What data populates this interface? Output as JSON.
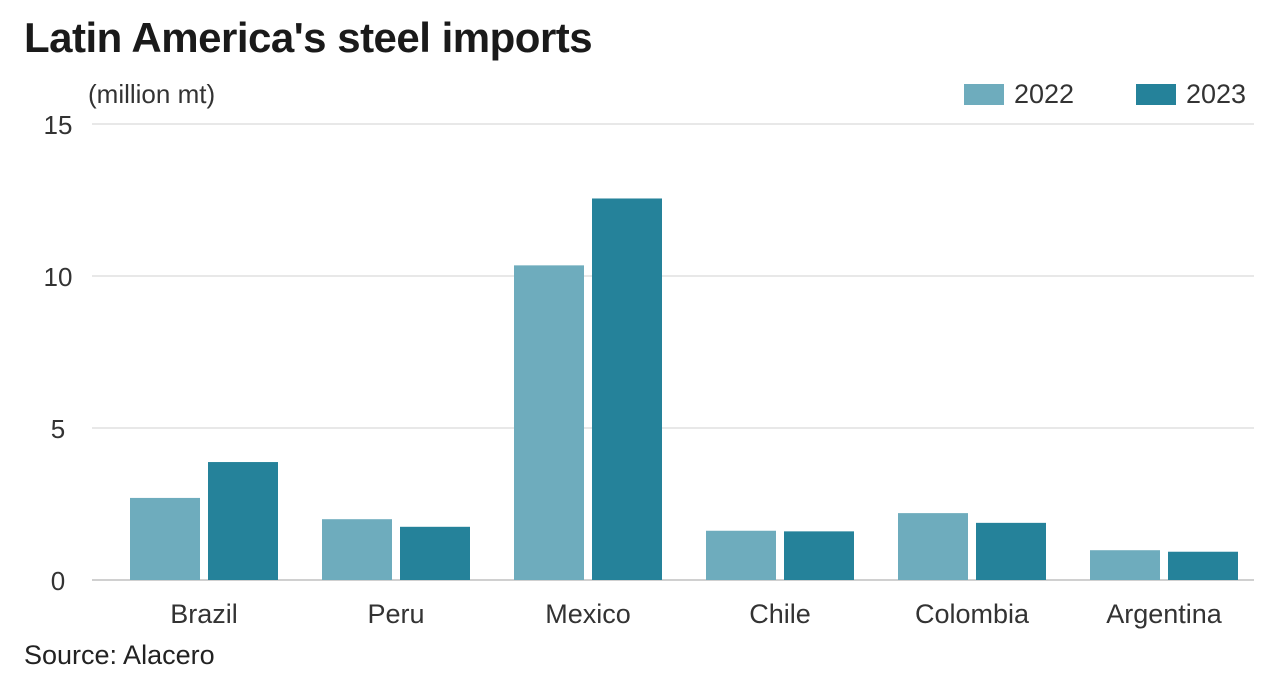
{
  "title": "Latin America's steel imports",
  "source": "Source: Alacero",
  "chart_data": {
    "type": "bar",
    "unit_label": "(million mt)",
    "categories": [
      "Brazil",
      "Peru",
      "Mexico",
      "Chile",
      "Colombia",
      "Argentina"
    ],
    "series": [
      {
        "name": "2022",
        "color": "#6eacbd",
        "values": [
          2.7,
          2.0,
          10.35,
          1.62,
          2.2,
          0.98
        ]
      },
      {
        "name": "2023",
        "color": "#25829a",
        "values": [
          3.88,
          1.75,
          12.55,
          1.6,
          1.88,
          0.93
        ]
      }
    ],
    "yticks": [
      0,
      5,
      10,
      15
    ],
    "ylim": [
      0,
      15
    ],
    "grid": true,
    "legend": "top-right"
  }
}
